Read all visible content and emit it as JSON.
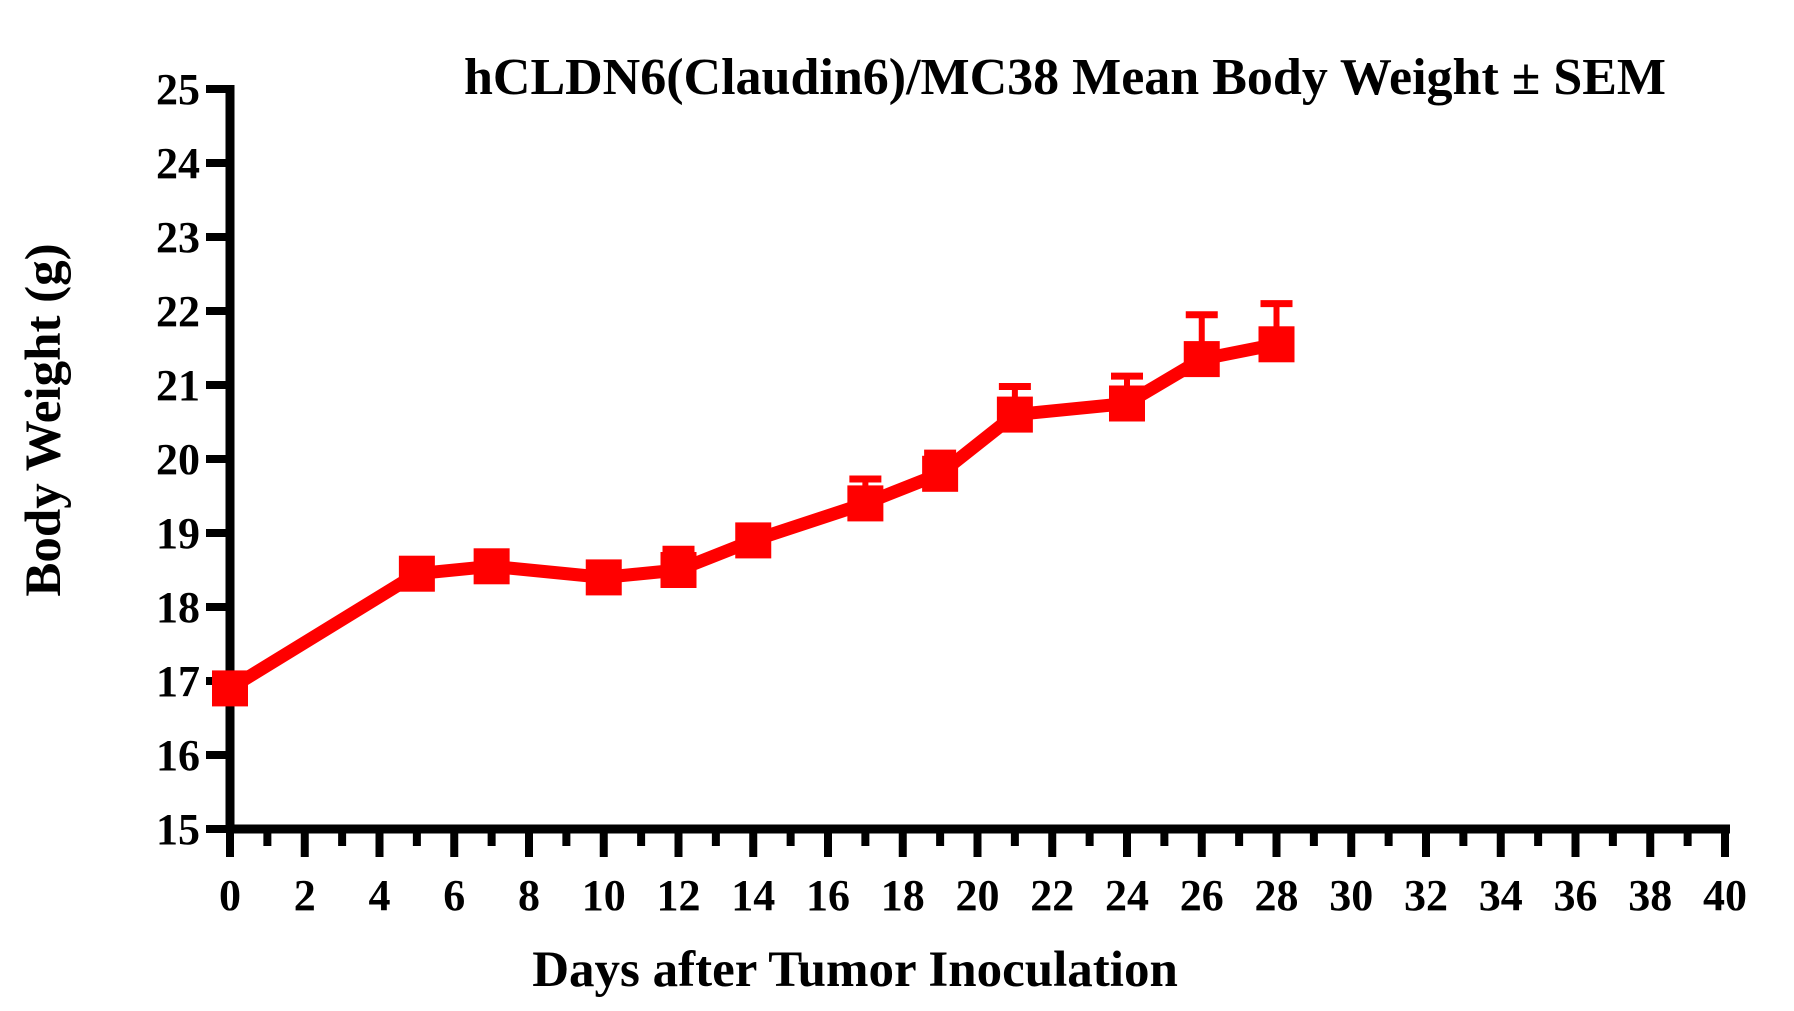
{
  "chart_data": {
    "type": "line",
    "title": "hCLDN6(Claudin6)/MC38 Mean Body Weight ± SEM",
    "xlabel": "Days after Tumor Inoculation",
    "ylabel": "Body Weight (g)",
    "xlim": [
      0,
      40
    ],
    "ylim": [
      15,
      25
    ],
    "grid": false,
    "legend": false,
    "axis_color": "#000000",
    "background_color": "#ffffff",
    "yticks": [
      15,
      16,
      17,
      18,
      19,
      20,
      21,
      22,
      23,
      24,
      25
    ],
    "xticks_major": [
      0,
      2,
      4,
      6,
      8,
      10,
      12,
      14,
      16,
      18,
      20,
      22,
      24,
      26,
      28,
      30,
      32,
      34,
      36,
      38,
      40
    ],
    "xticks_minor": [
      1,
      3,
      5,
      7,
      9,
      11,
      13,
      15,
      17,
      19,
      21,
      23,
      25,
      27,
      29,
      31,
      33,
      35,
      37,
      39
    ],
    "series": [
      {
        "name": "hCLDN6(Claudin6)/MC38",
        "color": "#FF0000",
        "marker": "square",
        "error_bars": "upper SEM",
        "x": [
          0,
          5,
          7,
          10,
          12,
          14,
          17,
          19,
          21,
          24,
          26,
          28
        ],
        "y": [
          16.9,
          18.45,
          18.55,
          18.4,
          18.5,
          18.9,
          19.4,
          19.8,
          20.6,
          20.75,
          21.35,
          21.55
        ],
        "sem_upper": [
          0,
          0,
          0,
          0,
          0.28,
          0,
          0.33,
          0.28,
          0.38,
          0.37,
          0.6,
          0.55
        ]
      }
    ]
  }
}
